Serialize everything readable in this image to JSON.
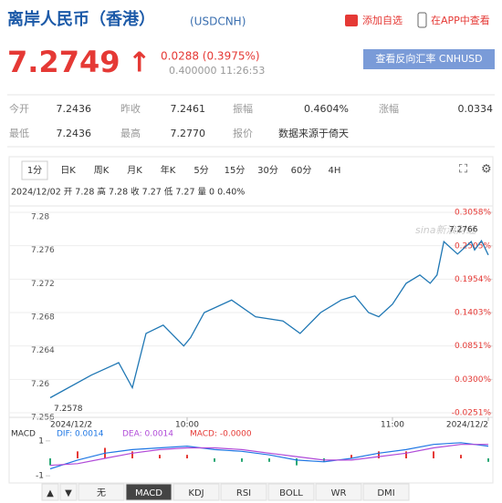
{
  "header": {
    "title": "离岸人民币（香港）",
    "code": "(USDCNH)",
    "add": "添加自选",
    "app": "在APP中查看"
  },
  "quote": {
    "price": "7.2749",
    "arrow": "↑",
    "change": "0.0288 (0.3975%)",
    "meta": "0.400000 11:26:53",
    "button": "查看反向汇率 CNHUSD"
  },
  "stats": [
    [
      "今开",
      "7.2436",
      "昨收",
      "7.2461",
      "振幅",
      "0.4604%",
      "涨幅",
      "0.0334"
    ],
    [
      "最低",
      "7.2436",
      "最高",
      "7.2770",
      "报价",
      "数据来源于倚天"
    ]
  ],
  "tabs": [
    "1分",
    "日K",
    "周K",
    "月K",
    "年K",
    "5分",
    "15分",
    "30分",
    "60分",
    "4H"
  ],
  "info": "2024/12/02 开 7.28 高 7.28 收 7.27 低 7.27 量 0 0.40%",
  "chart_data": [
    {
      "type": "line",
      "color": "#1f77b4",
      "x": [
        0,
        12,
        20,
        24,
        28,
        33,
        39,
        41,
        45,
        53,
        60,
        68,
        73,
        79,
        85,
        89,
        93,
        96,
        100,
        104,
        108,
        111,
        113,
        115,
        119,
        123,
        124,
        126,
        128
      ],
      "values": [
        7.2578,
        7.2605,
        7.262,
        7.259,
        7.2655,
        7.2665,
        7.264,
        7.265,
        7.268,
        7.2695,
        7.2675,
        7.267,
        7.2655,
        7.268,
        7.2695,
        7.27,
        7.268,
        7.2675,
        7.269,
        7.2715,
        7.2725,
        7.2715,
        7.2725,
        7.2765,
        7.275,
        7.2765,
        7.2755,
        7.2766,
        7.2749
      ],
      "xlim": [
        0,
        128
      ],
      "xticks": [
        {
          "value": 0,
          "label": "2024/12/2"
        },
        {
          "value": 40,
          "label": "10:00"
        },
        {
          "value": 100,
          "label": "11:00"
        },
        {
          "value": 128,
          "label": "2024/12/2"
        }
      ],
      "ylim": [
        7.256,
        7.28
      ],
      "yticks": [
        7.256,
        7.26,
        7.264,
        7.268,
        7.272,
        7.276,
        7.28
      ],
      "y2lim": [
        -0.0251,
        0.3058
      ],
      "y2ticks": [
        {
          "value": -0.0251,
          "label": "-0.0251%"
        },
        {
          "value": 0.03,
          "label": "0.0300%"
        },
        {
          "value": 0.0851,
          "label": "0.0851%"
        },
        {
          "value": 0.1403,
          "label": "0.1403%"
        },
        {
          "value": 0.1954,
          "label": "0.1954%"
        },
        {
          "value": 0.2505,
          "label": "0.2505%"
        },
        {
          "value": 0.3058,
          "label": "0.3058%"
        }
      ],
      "grid": true,
      "annotations": [
        {
          "text": "7.2578",
          "x": 0,
          "y": 7.2578
        },
        {
          "text": "7.2766",
          "x": 126,
          "y": 7.2766
        }
      ],
      "watermark": "sina新浪财经"
    },
    {
      "type": "macd",
      "title": "MACD",
      "x": [
        0,
        8,
        16,
        24,
        32,
        40,
        48,
        56,
        64,
        72,
        80,
        88,
        96,
        104,
        112,
        120,
        128
      ],
      "xlim": [
        0,
        128
      ],
      "ylim": [
        -1.2,
        1.2
      ],
      "yticks": [
        1,
        -1
      ],
      "up_color": "#e53935",
      "down_color": "#2aa876",
      "series": [
        {
          "label": "DIF: 0.0014",
          "color": "#1f77e4",
          "values": [
            -0.6,
            -0.1,
            0.3,
            0.5,
            0.6,
            0.7,
            0.5,
            0.4,
            0.2,
            -0.1,
            -0.2,
            0.0,
            0.3,
            0.5,
            0.8,
            0.9,
            0.7
          ]
        },
        {
          "label": "DEA: 0.0014",
          "color": "#b04ad8",
          "values": [
            -0.4,
            -0.3,
            0.0,
            0.3,
            0.5,
            0.6,
            0.6,
            0.5,
            0.3,
            0.1,
            -0.1,
            -0.1,
            0.1,
            0.3,
            0.6,
            0.8,
            0.8
          ]
        }
      ],
      "histogram": {
        "label": "MACD: -0.0000",
        "color": "#e53935",
        "values": [
          -0.4,
          0.4,
          0.6,
          0.4,
          0.2,
          0.2,
          -0.2,
          -0.2,
          -0.2,
          -0.4,
          -0.2,
          0.2,
          0.4,
          0.4,
          0.4,
          0.2,
          -0.2
        ]
      }
    }
  ],
  "indicator_tabs": [
    "▲",
    "▼",
    "无",
    "MACD",
    "KDJ",
    "RSI",
    "BOLL",
    "WR",
    "DMI"
  ]
}
